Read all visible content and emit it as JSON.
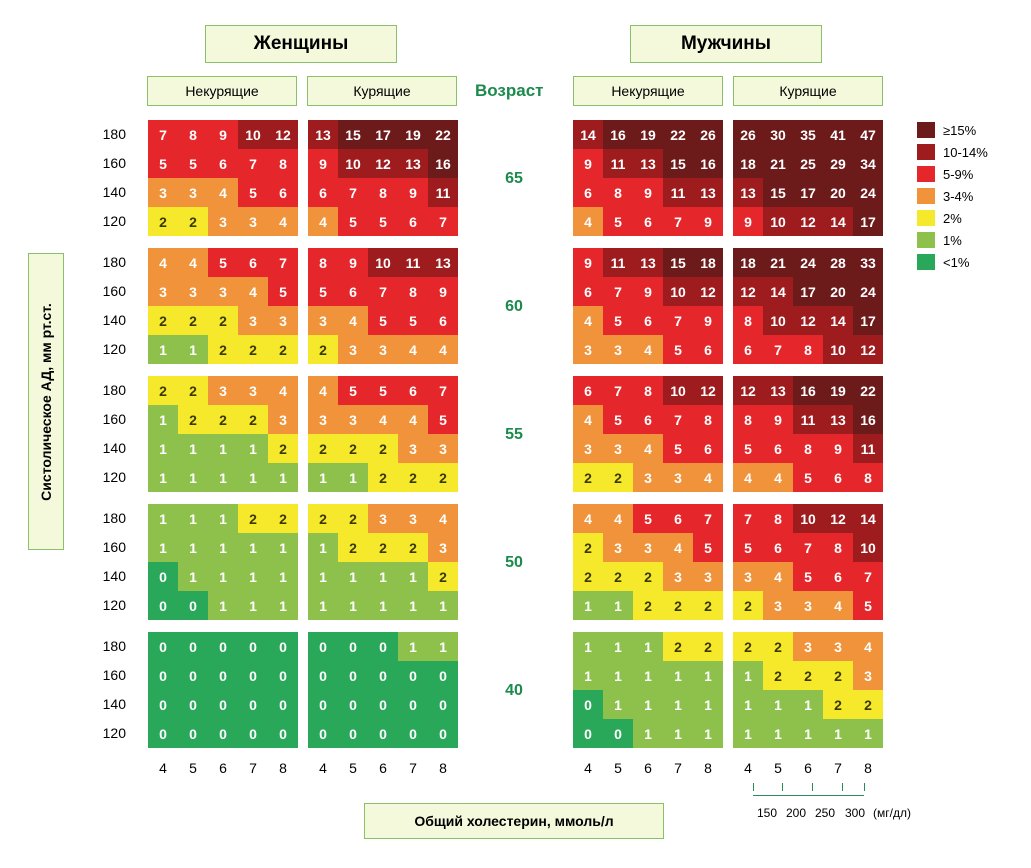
{
  "headers": {
    "women": "Женщины",
    "men": "Мужчины",
    "nonsmoking": "Некурящие",
    "smoking": "Курящие",
    "age": "Возраст",
    "y_axis": "Систолическое АД, мм рт.ст.",
    "x_axis": "Общий холестерин, ммоль/л",
    "mgdl_unit": "(мг/дл)"
  },
  "mgdl_ticks": [
    "150",
    "200",
    "250",
    "300"
  ],
  "legend": [
    {
      "label": "≥15%",
      "color": "#6d1a1a"
    },
    {
      "label": "10-14%",
      "color": "#9e1b1e"
    },
    {
      "label": "5-9%",
      "color": "#e5262b"
    },
    {
      "label": "3-4%",
      "color": "#f0933a"
    },
    {
      "label": "2%",
      "color": "#f6e82a"
    },
    {
      "label": "1%",
      "color": "#8dc14b"
    },
    {
      "label": "<1%",
      "color": "#2aa85a"
    }
  ],
  "chart_data": {
    "type": "heatmap",
    "x_values": [
      "4",
      "5",
      "6",
      "7",
      "8"
    ],
    "y_values": [
      "180",
      "160",
      "140",
      "120"
    ],
    "ages": [
      "65",
      "60",
      "55",
      "50",
      "40"
    ],
    "panels": [
      {
        "sex": "Женщины",
        "smoking": "Некурящие",
        "blocks": [
          [
            [
              7,
              8,
              9,
              10,
              12
            ],
            [
              5,
              5,
              6,
              7,
              8
            ],
            [
              3,
              3,
              4,
              5,
              6
            ],
            [
              2,
              2,
              3,
              3,
              4
            ]
          ],
          [
            [
              4,
              4,
              5,
              6,
              7
            ],
            [
              3,
              3,
              3,
              4,
              5
            ],
            [
              2,
              2,
              2,
              3,
              3
            ],
            [
              1,
              1,
              2,
              2,
              2
            ]
          ],
          [
            [
              2,
              2,
              3,
              3,
              4
            ],
            [
              1,
              2,
              2,
              2,
              3
            ],
            [
              1,
              1,
              1,
              1,
              2
            ],
            [
              1,
              1,
              1,
              1,
              1
            ]
          ],
          [
            [
              1,
              1,
              1,
              2,
              2
            ],
            [
              1,
              1,
              1,
              1,
              1
            ],
            [
              0,
              1,
              1,
              1,
              1
            ],
            [
              0,
              0,
              1,
              1,
              1
            ]
          ],
          [
            [
              0,
              0,
              0,
              0,
              0
            ],
            [
              0,
              0,
              0,
              0,
              0
            ],
            [
              0,
              0,
              0,
              0,
              0
            ],
            [
              0,
              0,
              0,
              0,
              0
            ]
          ]
        ]
      },
      {
        "sex": "Женщины",
        "smoking": "Курящие",
        "blocks": [
          [
            [
              13,
              15,
              17,
              19,
              22
            ],
            [
              9,
              10,
              12,
              13,
              16
            ],
            [
              6,
              7,
              8,
              9,
              11
            ],
            [
              4,
              5,
              5,
              6,
              7
            ]
          ],
          [
            [
              8,
              9,
              10,
              11,
              13
            ],
            [
              5,
              6,
              7,
              8,
              9
            ],
            [
              3,
              4,
              5,
              5,
              6
            ],
            [
              2,
              3,
              3,
              4,
              4
            ]
          ],
          [
            [
              4,
              5,
              5,
              6,
              7
            ],
            [
              3,
              3,
              4,
              4,
              5
            ],
            [
              2,
              2,
              2,
              3,
              3
            ],
            [
              1,
              1,
              2,
              2,
              2
            ]
          ],
          [
            [
              2,
              2,
              3,
              3,
              4
            ],
            [
              1,
              2,
              2,
              2,
              3
            ],
            [
              1,
              1,
              1,
              1,
              2
            ],
            [
              1,
              1,
              1,
              1,
              1
            ]
          ],
          [
            [
              0,
              0,
              0,
              1,
              1
            ],
            [
              0,
              0,
              0,
              0,
              0
            ],
            [
              0,
              0,
              0,
              0,
              0
            ],
            [
              0,
              0,
              0,
              0,
              0
            ]
          ]
        ]
      },
      {
        "sex": "Мужчины",
        "smoking": "Некурящие",
        "blocks": [
          [
            [
              14,
              16,
              19,
              22,
              26
            ],
            [
              9,
              11,
              13,
              15,
              16
            ],
            [
              6,
              8,
              9,
              11,
              13
            ],
            [
              4,
              5,
              6,
              7,
              9
            ]
          ],
          [
            [
              9,
              11,
              13,
              15,
              18
            ],
            [
              6,
              7,
              9,
              10,
              12
            ],
            [
              4,
              5,
              6,
              7,
              9
            ],
            [
              3,
              3,
              4,
              5,
              6
            ]
          ],
          [
            [
              6,
              7,
              8,
              10,
              12
            ],
            [
              4,
              5,
              6,
              7,
              8
            ],
            [
              3,
              3,
              4,
              5,
              6
            ],
            [
              2,
              2,
              3,
              3,
              4
            ]
          ],
          [
            [
              4,
              4,
              5,
              6,
              7
            ],
            [
              2,
              3,
              3,
              4,
              5
            ],
            [
              2,
              2,
              2,
              3,
              3
            ],
            [
              1,
              1,
              2,
              2,
              2
            ]
          ],
          [
            [
              1,
              1,
              1,
              2,
              2
            ],
            [
              1,
              1,
              1,
              1,
              1
            ],
            [
              0,
              1,
              1,
              1,
              1
            ],
            [
              0,
              0,
              1,
              1,
              1
            ]
          ]
        ]
      },
      {
        "sex": "Мужчины",
        "smoking": "Курящие",
        "blocks": [
          [
            [
              26,
              30,
              35,
              41,
              47
            ],
            [
              18,
              21,
              25,
              29,
              34
            ],
            [
              13,
              15,
              17,
              20,
              24
            ],
            [
              9,
              10,
              12,
              14,
              17
            ]
          ],
          [
            [
              18,
              21,
              24,
              28,
              33
            ],
            [
              12,
              14,
              17,
              20,
              24
            ],
            [
              8,
              10,
              12,
              14,
              17
            ],
            [
              6,
              7,
              8,
              10,
              12
            ]
          ],
          [
            [
              12,
              13,
              16,
              19,
              22
            ],
            [
              8,
              9,
              11,
              13,
              16
            ],
            [
              5,
              6,
              8,
              9,
              11
            ],
            [
              4,
              4,
              5,
              6,
              8
            ]
          ],
          [
            [
              7,
              8,
              10,
              12,
              14
            ],
            [
              5,
              6,
              7,
              8,
              10
            ],
            [
              3,
              4,
              5,
              6,
              7
            ],
            [
              2,
              3,
              3,
              4,
              5
            ]
          ],
          [
            [
              2,
              2,
              3,
              3,
              4
            ],
            [
              1,
              2,
              2,
              2,
              3
            ],
            [
              1,
              1,
              1,
              2,
              2
            ],
            [
              1,
              1,
              1,
              1,
              1
            ]
          ]
        ]
      }
    ]
  }
}
